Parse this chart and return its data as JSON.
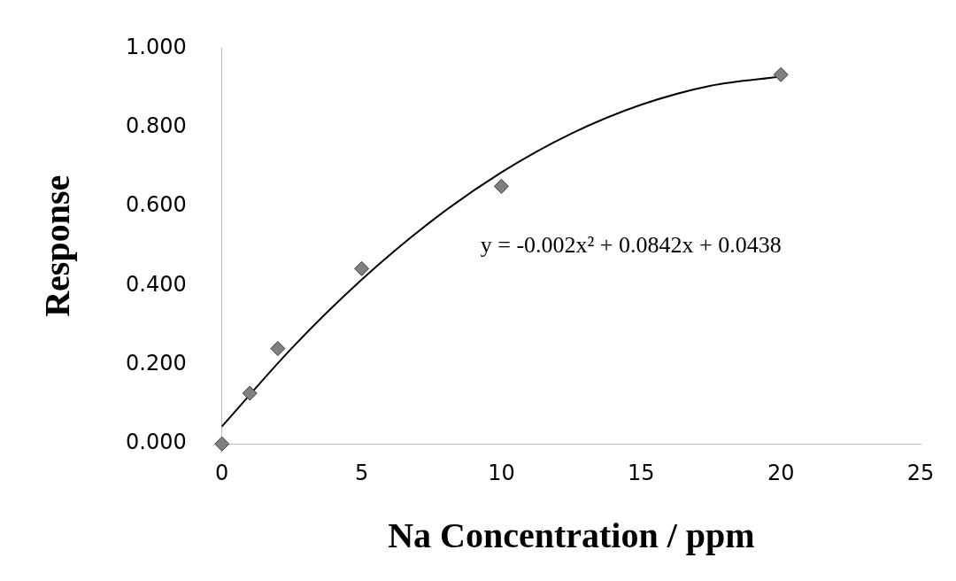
{
  "chart_data": {
    "type": "scatter",
    "xlabel": "Na Concentration / ppm",
    "ylabel": "Response",
    "xlim": [
      0,
      25
    ],
    "xticks": [
      0,
      5,
      10,
      15,
      20,
      25
    ],
    "ylim": [
      0,
      1
    ],
    "yticks": [
      {
        "value": 0,
        "label": "0.000"
      },
      {
        "value": 0.2,
        "label": "0.200"
      },
      {
        "value": 0.4,
        "label": "0.400"
      },
      {
        "value": 0.6,
        "label": "0.600"
      },
      {
        "value": 0.8,
        "label": "0.800"
      },
      {
        "value": 1,
        "label": "1.000"
      }
    ],
    "grid": false,
    "legend": false,
    "series": [
      {
        "type": "scatter",
        "color": "#808080",
        "marker": "diamond",
        "x": [
          0,
          1,
          2,
          5,
          10,
          20
        ],
        "values": [
          0.0,
          0.128,
          0.241,
          0.443,
          0.651,
          0.933
        ]
      },
      {
        "type": "line",
        "color": "#000000",
        "marker": "none",
        "line_style": "solid",
        "x": [
          0,
          2.5,
          5,
          7.5,
          10,
          12.5,
          15,
          17.5,
          20
        ],
        "values": [
          0.044,
          0.242,
          0.415,
          0.563,
          0.686,
          0.784,
          0.857,
          0.905,
          0.928
        ]
      }
    ],
    "annotations": [
      "y = -0.002x² + 0.0842x + 0.0438"
    ]
  }
}
